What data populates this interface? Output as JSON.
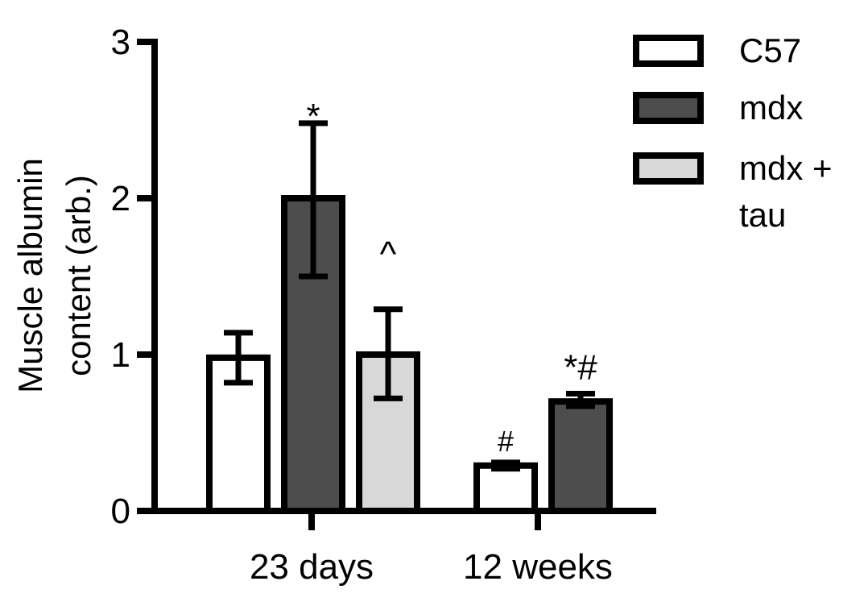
{
  "chart_data": {
    "type": "bar",
    "ylabel_lines": [
      "Muscle albumin",
      "content (arb.)"
    ],
    "ylim": [
      0,
      3
    ],
    "yticks": [
      "0",
      "1",
      "2",
      "3"
    ],
    "groups": [
      {
        "label": "23 days",
        "bars": [
          {
            "series": "C57",
            "value": 0.98,
            "err_low": 0.82,
            "err_high": 1.14,
            "annotation": ""
          },
          {
            "series": "mdx",
            "value": 2.0,
            "err_low": 1.5,
            "err_high": 2.48,
            "annotation": "*"
          },
          {
            "series": "mdx + tau",
            "value": 1.0,
            "err_low": 0.72,
            "err_high": 1.29,
            "annotation": "^"
          }
        ]
      },
      {
        "label": "12 weeks",
        "bars": [
          {
            "series": "C57",
            "value": 0.29,
            "err_low": 0.27,
            "err_high": 0.31,
            "annotation": "#"
          },
          {
            "series": "mdx",
            "value": 0.7,
            "err_low": 0.67,
            "err_high": 0.75,
            "annotation": "*#"
          }
        ]
      }
    ],
    "series": [
      {
        "name_lines": [
          "C57"
        ],
        "color": "#ffffff"
      },
      {
        "name_lines": [
          "mdx"
        ],
        "color": "#4d4d4d"
      },
      {
        "name_lines": [
          "mdx +",
          "tau"
        ],
        "color": "#d8d8d8"
      }
    ],
    "legend_position": "top-right",
    "grid": false
  }
}
